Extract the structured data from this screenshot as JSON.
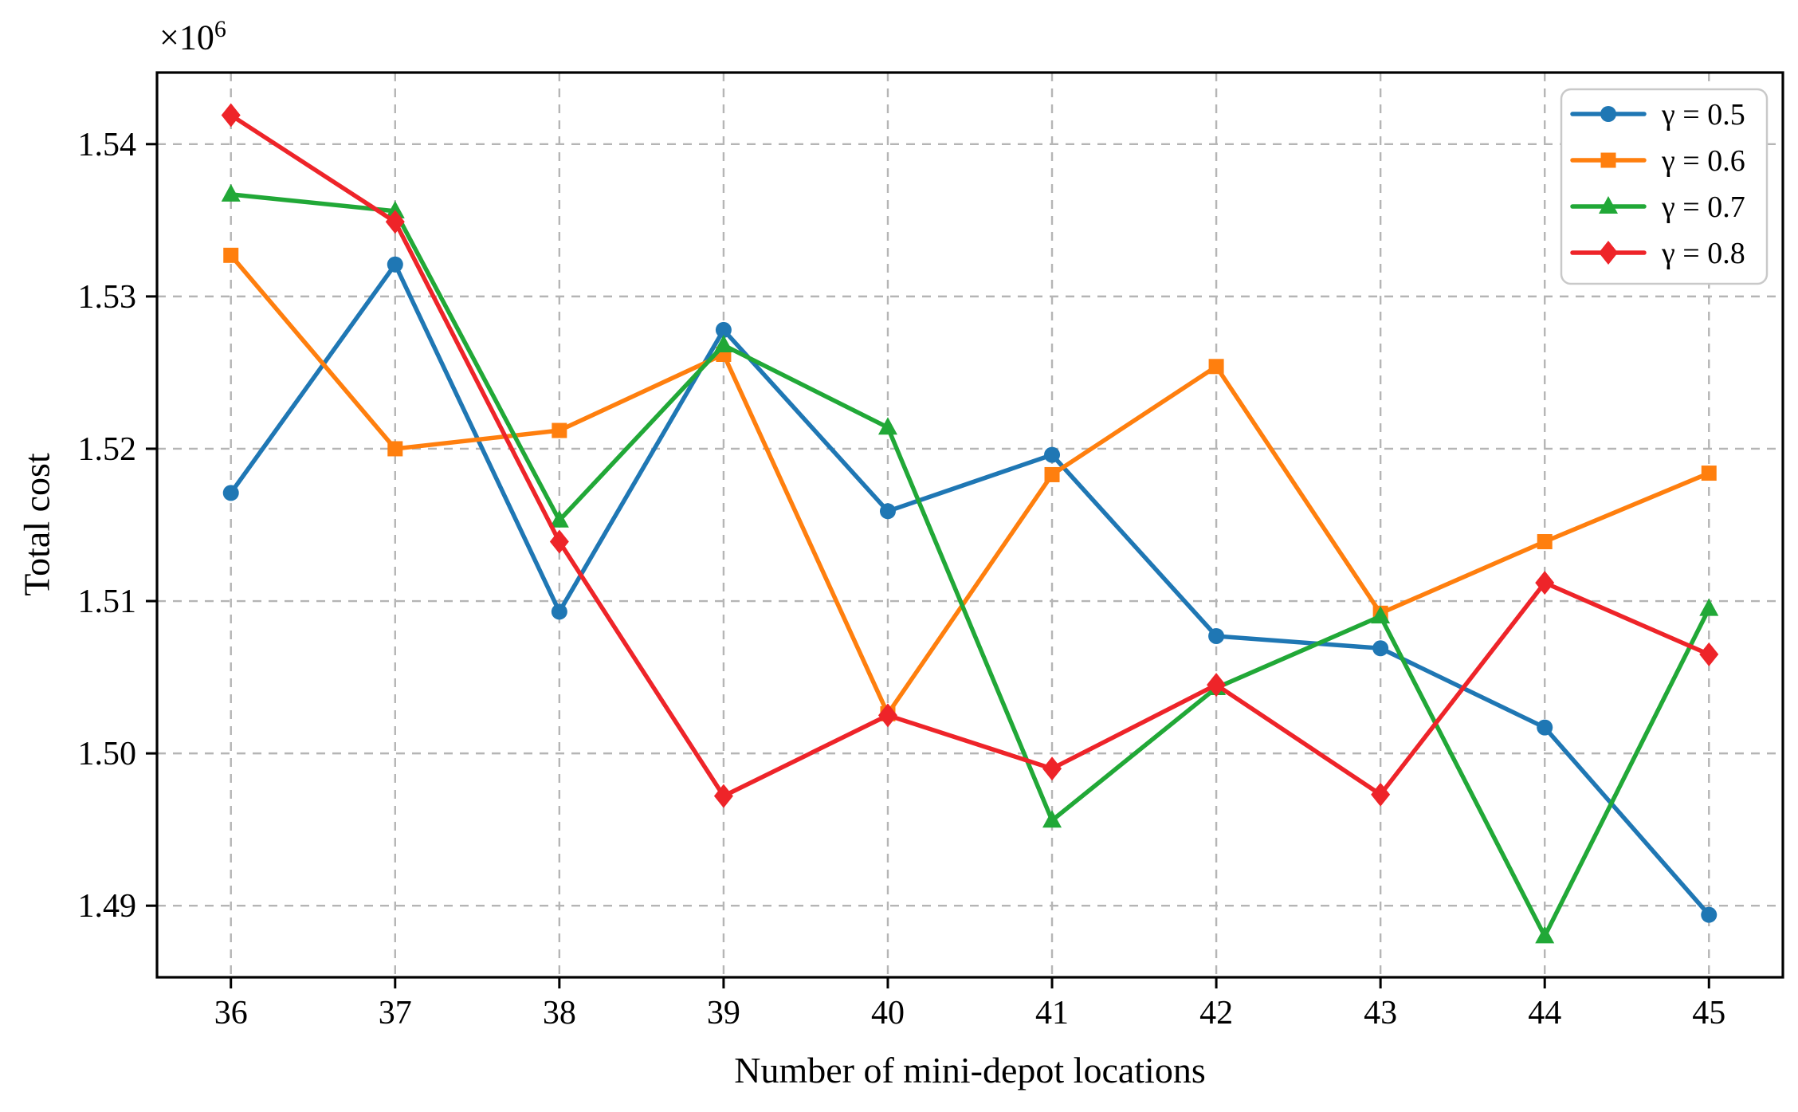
{
  "chart_data": {
    "type": "line",
    "title": "",
    "xlabel": "Number of mini-depot locations",
    "ylabel": "Total cost",
    "offset_base": "×10",
    "offset_exp": "6",
    "y_unit_multiplier": 1000000,
    "grid": true,
    "legend_position": "top-right",
    "xlim": [
      35.55,
      45.45
    ],
    "ylim": [
      1.4853,
      1.5447
    ],
    "xticks": [
      36,
      37,
      38,
      39,
      40,
      41,
      42,
      43,
      44,
      45
    ],
    "xtick_labels": [
      "36",
      "37",
      "38",
      "39",
      "40",
      "41",
      "42",
      "43",
      "44",
      "45"
    ],
    "yticks": [
      1.49,
      1.5,
      1.51,
      1.52,
      1.53,
      1.54
    ],
    "ytick_labels": [
      "1.49",
      "1.50",
      "1.51",
      "1.52",
      "1.53",
      "1.54"
    ],
    "x": [
      36,
      37,
      38,
      39,
      40,
      41,
      42,
      43,
      44,
      45
    ],
    "series": [
      {
        "name": "γ = 0.5",
        "slug": "gamma-0-5",
        "color": "#1f77b4",
        "marker": "circle",
        "values": [
          1.5171,
          1.5321,
          1.5093,
          1.5278,
          1.5159,
          1.5196,
          1.5077,
          1.5069,
          1.5017,
          1.4894
        ]
      },
      {
        "name": "γ = 0.6",
        "slug": "gamma-0-6",
        "color": "#ff7f0e",
        "marker": "square",
        "values": [
          1.5327,
          1.52,
          1.5212,
          1.5262,
          1.5026,
          1.5183,
          1.5254,
          1.5092,
          1.5139,
          1.5184
        ]
      },
      {
        "name": "γ = 0.7",
        "slug": "gamma-0-7",
        "color": "#21a837",
        "marker": "triangle",
        "values": [
          1.5367,
          1.5356,
          1.5153,
          1.5268,
          1.5214,
          1.4956,
          1.5043,
          1.509,
          1.488,
          1.5095
        ]
      },
      {
        "name": "γ = 0.8",
        "slug": "gamma-0-8",
        "color": "#ee2429",
        "marker": "diamond",
        "values": [
          1.5419,
          1.5349,
          1.5139,
          1.4972,
          1.5025,
          1.499,
          1.5045,
          1.4973,
          1.5112,
          1.5065
        ]
      }
    ]
  }
}
